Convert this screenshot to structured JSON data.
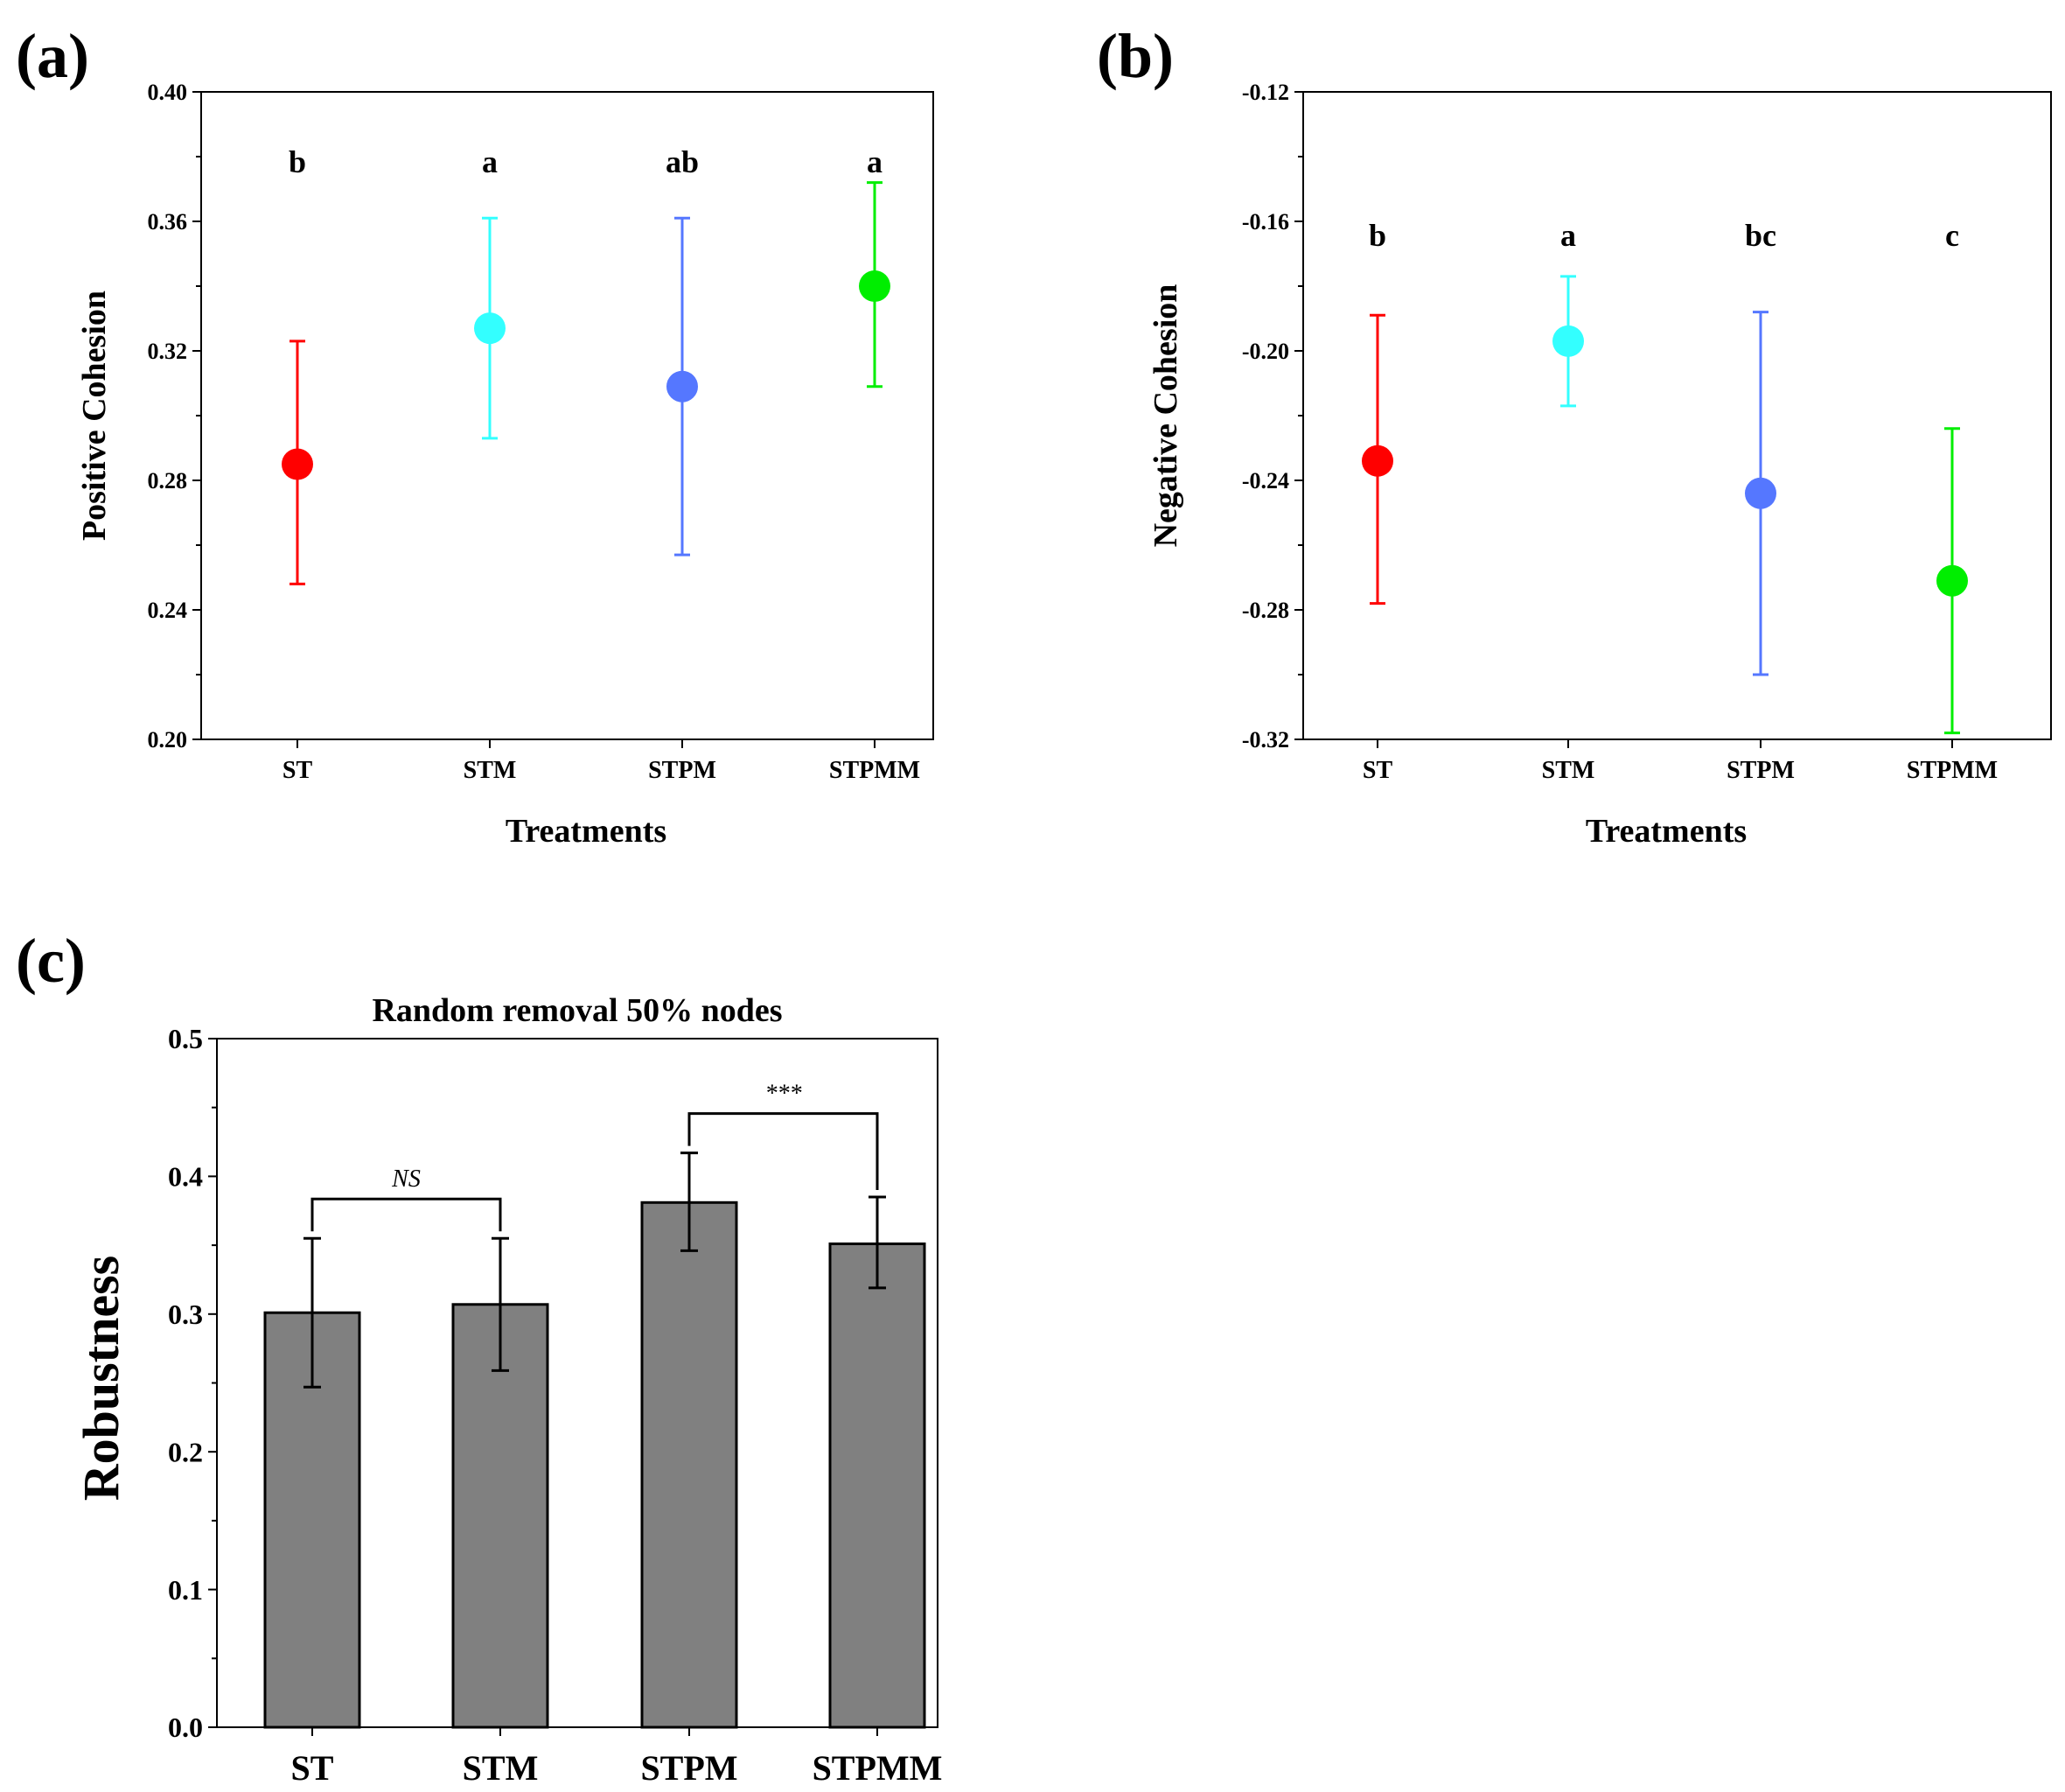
{
  "chart_data": [
    {
      "panel": "(a)",
      "type": "scatter",
      "ylabel": "Positive Cohesion",
      "xlabel": "Treatments",
      "categories": [
        "ST",
        "STM",
        "STPM",
        "STPMM"
      ],
      "means": [
        0.285,
        0.327,
        0.309,
        0.34
      ],
      "error_low": [
        0.248,
        0.293,
        0.257,
        0.309
      ],
      "error_high": [
        0.323,
        0.361,
        0.361,
        0.372
      ],
      "letters": [
        "b",
        "a",
        "ab",
        "a"
      ],
      "colors": [
        "#ff0000",
        "#33ffff",
        "#5577ff",
        "#00ee00"
      ],
      "ylim": [
        0.2,
        0.4
      ],
      "yticks": [
        0.2,
        0.24,
        0.28,
        0.32,
        0.36,
        0.4
      ],
      "ytick_labels": [
        "0.20",
        "0.24",
        "0.28",
        "0.32",
        "0.36",
        "0.40"
      ],
      "grid": false,
      "legend": "none"
    },
    {
      "panel": "(b)",
      "type": "scatter",
      "ylabel": "Negative Cohesion",
      "xlabel": "Treatments",
      "categories": [
        "ST",
        "STM",
        "STPM",
        "STPMM"
      ],
      "means": [
        -0.234,
        -0.197,
        -0.244,
        -0.271
      ],
      "error_low": [
        -0.278,
        -0.217,
        -0.3,
        -0.318
      ],
      "error_high": [
        -0.189,
        -0.177,
        -0.188,
        -0.224
      ],
      "letters": [
        "b",
        "a",
        "bc",
        "c"
      ],
      "colors": [
        "#ff0000",
        "#33ffff",
        "#5577ff",
        "#00ee00"
      ],
      "ylim": [
        -0.32,
        -0.12
      ],
      "yticks": [
        -0.32,
        -0.28,
        -0.24,
        -0.2,
        -0.16,
        -0.12
      ],
      "ytick_labels": [
        "-0.32",
        "-0.28",
        "-0.24",
        "-0.20",
        "-0.16",
        "-0.12"
      ],
      "grid": false,
      "legend": "none"
    },
    {
      "panel": "(c)",
      "type": "bar",
      "title": "Random removal 50% nodes",
      "ylabel": "Robustness",
      "xlabel": "",
      "categories": [
        "ST",
        "STM",
        "STPM",
        "STPMM"
      ],
      "values": [
        0.301,
        0.307,
        0.381,
        0.351
      ],
      "error_low": [
        0.247,
        0.259,
        0.346,
        0.319
      ],
      "error_high": [
        0.355,
        0.355,
        0.417,
        0.385
      ],
      "bar_color": "#808080",
      "ylim": [
        0.0,
        0.5
      ],
      "yticks": [
        0.0,
        0.1,
        0.2,
        0.3,
        0.4,
        0.5
      ],
      "ytick_labels": [
        "0.0",
        "0.1",
        "0.2",
        "0.3",
        "0.4",
        "0.5"
      ],
      "brackets": [
        {
          "from": "ST",
          "to": "STM",
          "label": "NS"
        },
        {
          "from": "STPM",
          "to": "STPMM",
          "label": "***"
        }
      ],
      "grid": false,
      "legend": "none"
    }
  ]
}
